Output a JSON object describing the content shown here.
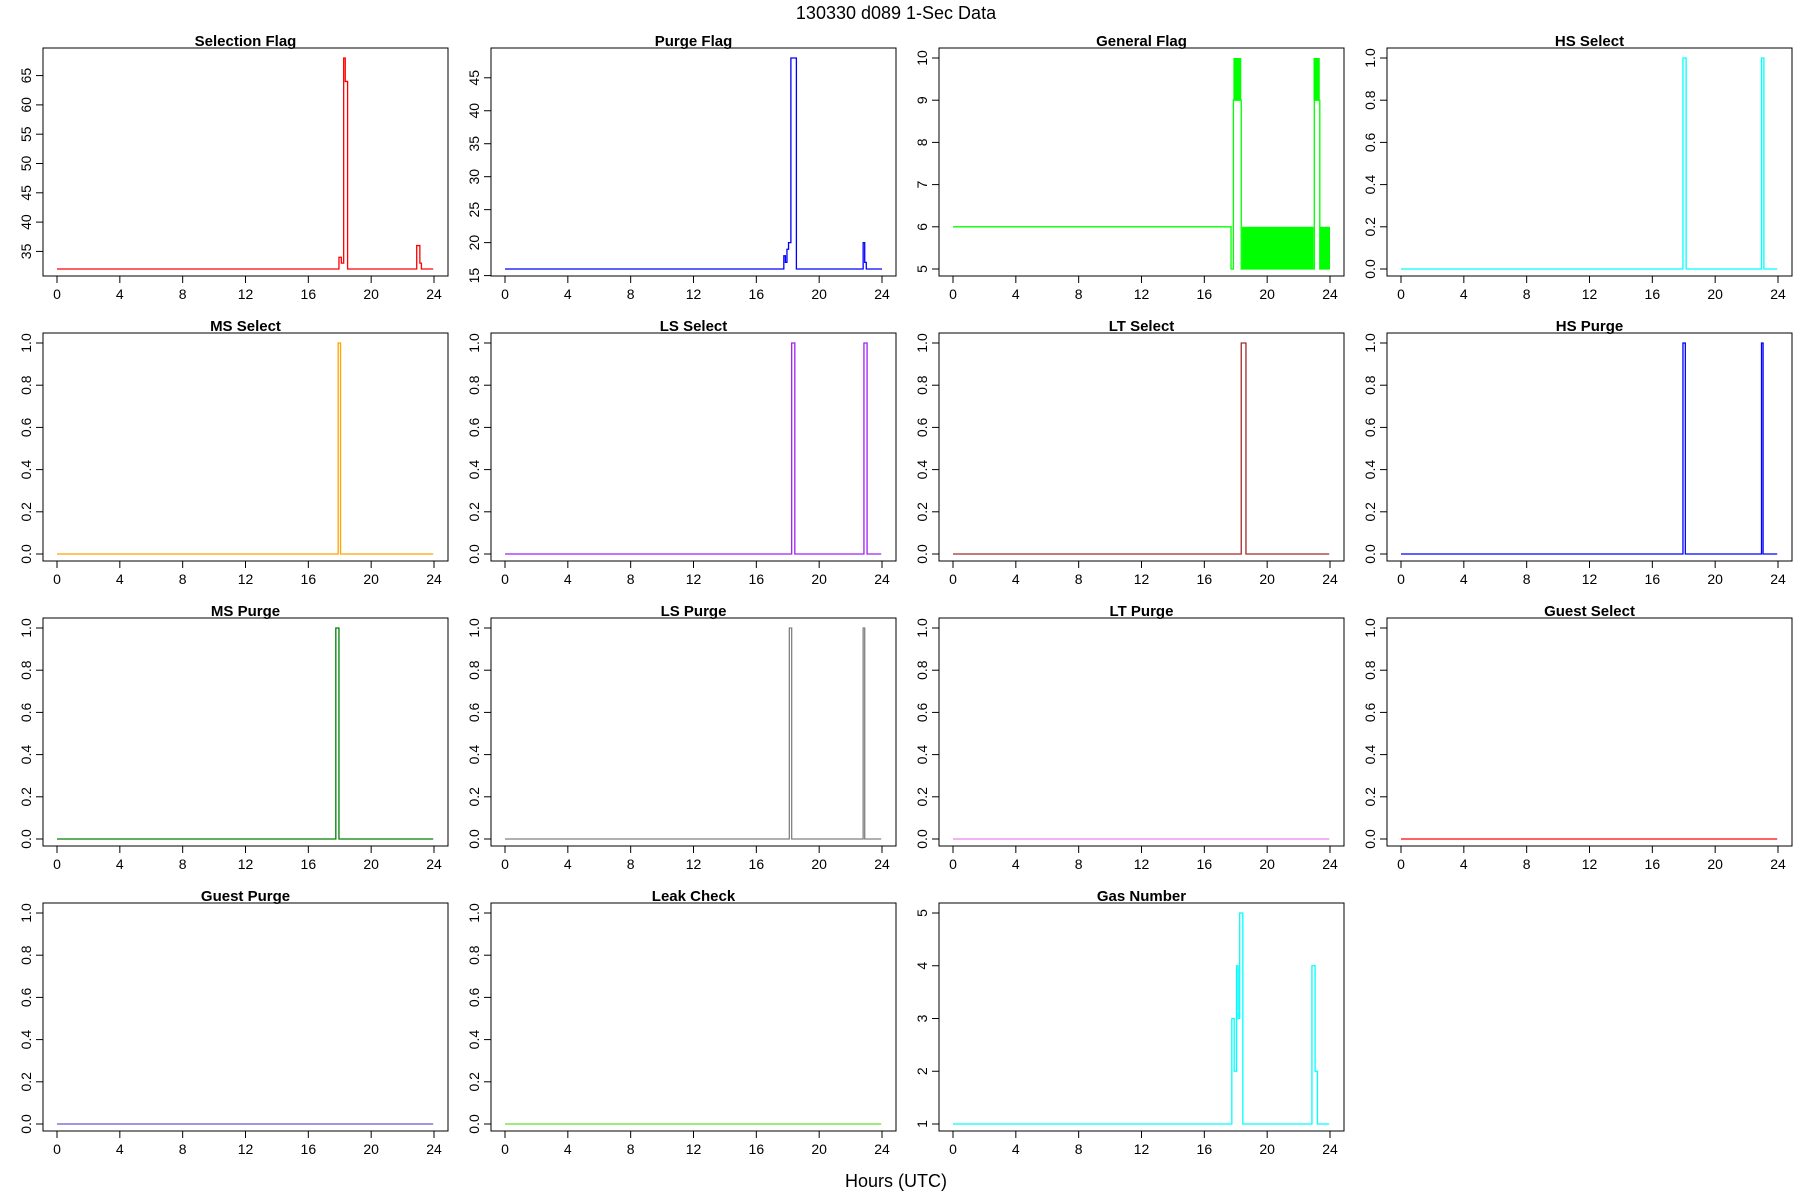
{
  "figure": {
    "title": "130330   d089   1-Sec Data",
    "xlabel": "Hours (UTC)"
  },
  "chart_data": [
    {
      "type": "line",
      "step": true,
      "title": "Selection Flag",
      "color": "#ff0000",
      "xlim": [
        0,
        24
      ],
      "ylim": [
        32,
        68
      ],
      "xticks": [
        0,
        4,
        8,
        12,
        16,
        20,
        24
      ],
      "yticks": [
        35,
        40,
        45,
        50,
        55,
        60,
        65
      ],
      "x": [
        0,
        17.95,
        17.95,
        18.1,
        18.1,
        18.25,
        18.25,
        18.35,
        18.35,
        18.5,
        18.5,
        22.9,
        22.9,
        23.1,
        23.1,
        23.2,
        23.2,
        23.95
      ],
      "y": [
        32,
        32,
        34,
        34,
        33,
        33,
        68,
        68,
        64,
        64,
        32,
        32,
        36,
        36,
        33,
        33,
        32,
        32
      ]
    },
    {
      "type": "line",
      "step": true,
      "title": "Purge Flag",
      "color": "#0000ff",
      "xlim": [
        0,
        24
      ],
      "ylim": [
        16,
        48
      ],
      "xticks": [
        0,
        4,
        8,
        12,
        16,
        20,
        24
      ],
      "yticks": [
        15,
        20,
        25,
        30,
        35,
        40,
        45
      ],
      "x": [
        0,
        17.75,
        17.75,
        17.85,
        17.85,
        17.95,
        17.95,
        18.05,
        18.05,
        18.2,
        18.2,
        18.55,
        18.55,
        22.8,
        22.8,
        22.9,
        22.9,
        23.0,
        23.0,
        24
      ],
      "y": [
        16,
        16,
        18,
        18,
        17,
        17,
        19,
        19,
        20,
        20,
        48,
        48,
        16,
        16,
        20,
        20,
        17,
        17,
        16,
        16
      ]
    },
    {
      "type": "line",
      "step": true,
      "title": "General Flag",
      "color": "#00ff00",
      "xlim": [
        0,
        24
      ],
      "ylim": [
        5,
        10
      ],
      "xticks": [
        0,
        4,
        8,
        12,
        16,
        20,
        24
      ],
      "yticks": [
        5,
        6,
        7,
        8,
        9,
        10
      ],
      "x": [
        0,
        17.7,
        17.7,
        17.85,
        17.85,
        18.35,
        18.35,
        23.0,
        23.0,
        23.35,
        23.35,
        24
      ],
      "y": [
        6,
        6,
        5,
        5,
        9,
        9,
        5,
        5,
        9,
        9,
        5,
        5
      ],
      "bands": [
        {
          "x": [
            17.85,
            18.35
          ],
          "y": [
            9,
            10
          ]
        },
        {
          "x": [
            22.95,
            23.35
          ],
          "y": [
            9,
            10
          ]
        },
        {
          "x": [
            18.4,
            22.95
          ],
          "y": [
            5,
            6
          ]
        },
        {
          "x": [
            23.35,
            24
          ],
          "y": [
            5,
            6
          ]
        }
      ]
    },
    {
      "type": "line",
      "step": true,
      "title": "HS Select",
      "color": "#00ffff",
      "xlim": [
        0,
        24
      ],
      "ylim": [
        0,
        1
      ],
      "xticks": [
        0,
        4,
        8,
        12,
        16,
        20,
        24
      ],
      "yticks": [
        0.0,
        0.2,
        0.4,
        0.6,
        0.8,
        1.0
      ],
      "x": [
        0,
        17.95,
        17.95,
        18.15,
        18.15,
        22.95,
        22.95,
        23.1,
        23.1,
        23.95
      ],
      "y": [
        0,
        0,
        1,
        1,
        0,
        0,
        1,
        1,
        0,
        0
      ]
    },
    {
      "type": "line",
      "step": true,
      "title": "MS Select",
      "color": "#ffa500",
      "xlim": [
        0,
        24
      ],
      "ylim": [
        0,
        1
      ],
      "xticks": [
        0,
        4,
        8,
        12,
        16,
        20,
        24
      ],
      "yticks": [
        0.0,
        0.2,
        0.4,
        0.6,
        0.8,
        1.0
      ],
      "x": [
        0,
        17.9,
        17.9,
        18.05,
        18.05,
        23.95
      ],
      "y": [
        0,
        0,
        1,
        1,
        0,
        0
      ]
    },
    {
      "type": "line",
      "step": true,
      "title": "LS Select",
      "color": "#a020f0",
      "xlim": [
        0,
        24
      ],
      "ylim": [
        0,
        1
      ],
      "xticks": [
        0,
        4,
        8,
        12,
        16,
        20,
        24
      ],
      "yticks": [
        0.0,
        0.2,
        0.4,
        0.6,
        0.8,
        1.0
      ],
      "x": [
        0,
        18.25,
        18.25,
        18.45,
        18.45,
        22.85,
        22.85,
        23.05,
        23.05,
        23.95
      ],
      "y": [
        0,
        0,
        1,
        1,
        0,
        0,
        1,
        1,
        0,
        0
      ]
    },
    {
      "type": "line",
      "step": true,
      "title": "LT Select",
      "color": "#a52a2a",
      "xlim": [
        0,
        24
      ],
      "ylim": [
        0,
        1
      ],
      "xticks": [
        0,
        4,
        8,
        12,
        16,
        20,
        24
      ],
      "yticks": [
        0.0,
        0.2,
        0.4,
        0.6,
        0.8,
        1.0
      ],
      "x": [
        0,
        18.35,
        18.35,
        18.65,
        18.65,
        23.95
      ],
      "y": [
        0,
        0,
        1,
        1,
        0,
        0
      ]
    },
    {
      "type": "line",
      "step": true,
      "title": "HS Purge",
      "color": "#0000ff",
      "xlim": [
        0,
        24
      ],
      "ylim": [
        0,
        1
      ],
      "xticks": [
        0,
        4,
        8,
        12,
        16,
        20,
        24
      ],
      "yticks": [
        0.0,
        0.2,
        0.4,
        0.6,
        0.8,
        1.0
      ],
      "x": [
        0,
        17.95,
        17.95,
        18.1,
        18.1,
        22.95,
        22.95,
        23.05,
        23.05,
        23.95
      ],
      "y": [
        0,
        0,
        1,
        1,
        0,
        0,
        1,
        1,
        0,
        0
      ]
    },
    {
      "type": "line",
      "step": true,
      "title": "MS Purge",
      "color": "#008000",
      "xlim": [
        0,
        24
      ],
      "ylim": [
        0,
        1
      ],
      "xticks": [
        0,
        4,
        8,
        12,
        16,
        20,
        24
      ],
      "yticks": [
        0.0,
        0.2,
        0.4,
        0.6,
        0.8,
        1.0
      ],
      "x": [
        0,
        17.75,
        17.75,
        17.95,
        17.95,
        23.95
      ],
      "y": [
        0,
        0,
        1,
        1,
        0,
        0
      ]
    },
    {
      "type": "line",
      "step": true,
      "title": "LS Purge",
      "color": "#808080",
      "xlim": [
        0,
        24
      ],
      "ylim": [
        0,
        1
      ],
      "xticks": [
        0,
        4,
        8,
        12,
        16,
        20,
        24
      ],
      "yticks": [
        0.0,
        0.2,
        0.4,
        0.6,
        0.8,
        1.0
      ],
      "x": [
        0,
        18.1,
        18.1,
        18.25,
        18.25,
        22.8,
        22.8,
        22.9,
        22.9,
        23.95
      ],
      "y": [
        0,
        0,
        1,
        1,
        0,
        0,
        1,
        1,
        0,
        0
      ]
    },
    {
      "type": "line",
      "step": true,
      "title": "LT Purge",
      "color": "#ee82ee",
      "xlim": [
        0,
        24
      ],
      "ylim": [
        0,
        1
      ],
      "xticks": [
        0,
        4,
        8,
        12,
        16,
        20,
        24
      ],
      "yticks": [
        0.0,
        0.2,
        0.4,
        0.6,
        0.8,
        1.0
      ],
      "x": [
        0,
        23.95
      ],
      "y": [
        0,
        0
      ]
    },
    {
      "type": "line",
      "step": true,
      "title": "Guest Select",
      "color": "#ff0000",
      "xlim": [
        0,
        24
      ],
      "ylim": [
        0,
        1
      ],
      "xticks": [
        0,
        4,
        8,
        12,
        16,
        20,
        24
      ],
      "yticks": [
        0.0,
        0.2,
        0.4,
        0.6,
        0.8,
        1.0
      ],
      "x": [
        0,
        23.95
      ],
      "y": [
        0,
        0
      ]
    },
    {
      "type": "line",
      "step": true,
      "title": "Guest Purge",
      "color": "#6a5acd",
      "xlim": [
        0,
        24
      ],
      "ylim": [
        0,
        1
      ],
      "xticks": [
        0,
        4,
        8,
        12,
        16,
        20,
        24
      ],
      "yticks": [
        0.0,
        0.2,
        0.4,
        0.6,
        0.8,
        1.0
      ],
      "x": [
        0,
        23.95
      ],
      "y": [
        0,
        0
      ]
    },
    {
      "type": "line",
      "step": true,
      "title": "Leak Check",
      "color": "#66dd33",
      "xlim": [
        0,
        24
      ],
      "ylim": [
        0,
        1
      ],
      "xticks": [
        0,
        4,
        8,
        12,
        16,
        20,
        24
      ],
      "yticks": [
        0.0,
        0.2,
        0.4,
        0.6,
        0.8,
        1.0
      ],
      "x": [
        0,
        23.95
      ],
      "y": [
        0,
        0
      ]
    },
    {
      "type": "line",
      "step": true,
      "title": "Gas Number",
      "color": "#00ffff",
      "xlim": [
        0,
        24
      ],
      "ylim": [
        1,
        5
      ],
      "xticks": [
        0,
        4,
        8,
        12,
        16,
        20,
        24
      ],
      "yticks": [
        1,
        2,
        3,
        4,
        5
      ],
      "x": [
        0,
        17.75,
        17.75,
        17.9,
        17.9,
        18.05,
        18.05,
        18.15,
        18.15,
        18.25,
        18.25,
        18.45,
        18.45,
        22.85,
        22.85,
        23.05,
        23.05,
        23.2,
        23.2,
        23.95
      ],
      "y": [
        1,
        1,
        3,
        3,
        2,
        2,
        4,
        4,
        3,
        3,
        5,
        5,
        1,
        1,
        4,
        4,
        2,
        2,
        1,
        1
      ]
    }
  ]
}
